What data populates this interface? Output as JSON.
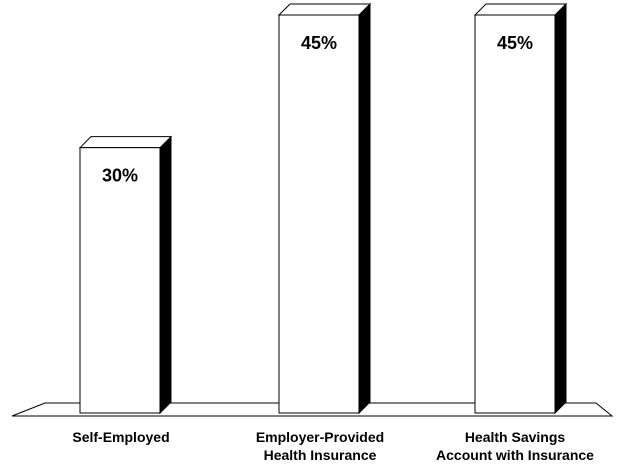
{
  "chart_data": {
    "type": "bar",
    "style": "3d-column",
    "categories": [
      [
        "Self-Employed"
      ],
      [
        "Employer-Provided",
        "Health Insurance"
      ],
      [
        "Health Savings",
        "Account with Insurance"
      ]
    ],
    "values": [
      30,
      45,
      45
    ],
    "data_labels": [
      "30%",
      "45%",
      "45%"
    ],
    "ylim": [
      0,
      45
    ],
    "grid": false,
    "legend": "none",
    "colors": {
      "bar_face": "#ffffff",
      "bar_side": "#000000",
      "outline": "#000000",
      "floor": "#ffffff"
    }
  }
}
